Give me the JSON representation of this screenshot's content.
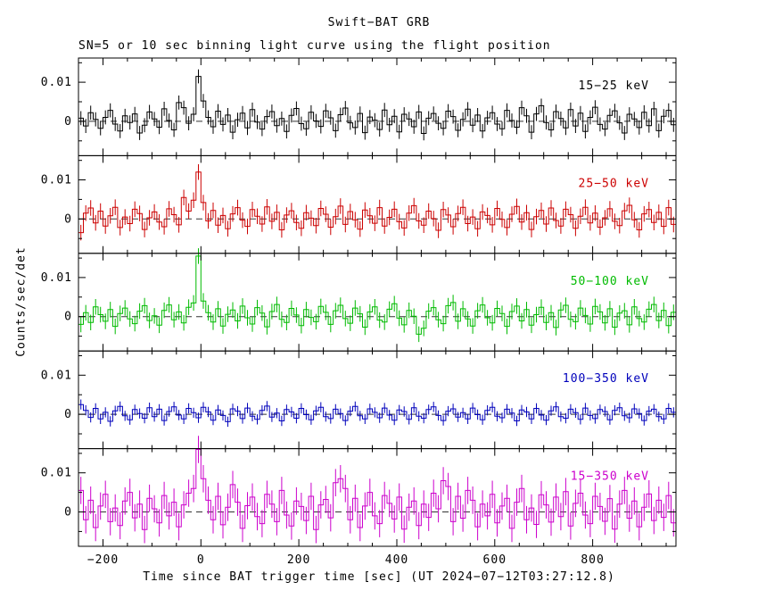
{
  "chart": {
    "title": "Swift−BAT GRB",
    "subtitle": "SN=5 or 10 sec binning light curve using the flight position",
    "ylabel": "Counts/sec/det",
    "xlabel": "Time since BAT trigger time [sec] (UT 2024−07−12T03:27:12.8)"
  },
  "chart_data": {
    "type": "line",
    "subtype": "step-histogram-with-errorbars",
    "title": "Swift−BAT GRB",
    "xlabel": "Time since BAT trigger time [sec] (UT 2024−07−12T03:27:12.8)",
    "ylabel": "Counts/sec/det",
    "xlim": [
      -250,
      970
    ],
    "ylim": [
      -0.0088,
      0.0162
    ],
    "x_ticks": [
      -200,
      0,
      200,
      400,
      600,
      800
    ],
    "x_tick_labels": [
      "−200",
      "0",
      "200",
      "400",
      "600",
      "800"
    ],
    "y_ticks": [
      0,
      0.01
    ],
    "y_tick_labels": [
      "0",
      "0.01"
    ],
    "x_start": -245,
    "x_step": 10,
    "value_unit": 0.0001,
    "grid": false,
    "legend_position": "inside-top-right-per-panel",
    "series": [
      {
        "name": "15−25 keV",
        "color": "#000000",
        "err": 18,
        "values": [
          8,
          -12,
          22,
          5,
          -18,
          10,
          28,
          -7,
          -25,
          14,
          -3,
          19,
          -30,
          -10,
          24,
          6,
          -15,
          32,
          2,
          -22,
          48,
          35,
          -5,
          18,
          115,
          52,
          10,
          -14,
          26,
          -8,
          16,
          -28,
          4,
          21,
          -17,
          30,
          -2,
          -20,
          12,
          25,
          -11,
          7,
          -26,
          15,
          33,
          -6,
          -19,
          23,
          1,
          -13,
          27,
          9,
          -24,
          17,
          34,
          -4,
          -16,
          20,
          -29,
          11,
          3,
          -21,
          29,
          -9,
          13,
          -27,
          18,
          6,
          -14,
          24,
          -31,
          8,
          20,
          -5,
          -18,
          26,
          12,
          -23,
          5,
          31,
          -10,
          16,
          -25,
          9,
          22,
          -7,
          -19,
          28,
          2,
          -15,
          35,
          14,
          -28,
          19,
          40,
          -3,
          -22,
          25,
          7,
          -17,
          30,
          -12,
          21,
          -26,
          10,
          36,
          -8,
          -20,
          15,
          27,
          -4,
          -30,
          18,
          6,
          -16,
          23,
          -11,
          32,
          -24,
          13,
          28,
          -9
        ]
      },
      {
        "name": "25−50 keV",
        "color": "#cc0000",
        "err": 20,
        "values": [
          -35,
          15,
          28,
          -10,
          20,
          -18,
          8,
          30,
          -22,
          5,
          -12,
          25,
          14,
          -27,
          3,
          18,
          -8,
          -20,
          26,
          11,
          -15,
          55,
          20,
          48,
          120,
          42,
          -5,
          22,
          -16,
          9,
          -25,
          13,
          29,
          -3,
          -19,
          24,
          7,
          -13,
          31,
          -6,
          17,
          -28,
          10,
          21,
          -9,
          -24,
          16,
          2,
          -17,
          27,
          12,
          -21,
          6,
          33,
          -14,
          19,
          -2,
          -26,
          23,
          8,
          -11,
          29,
          -18,
          4,
          25,
          -7,
          -23,
          15,
          34,
          -5,
          -16,
          20,
          1,
          -29,
          24,
          10,
          -20,
          14,
          30,
          -12,
          5,
          -25,
          18,
          9,
          -15,
          27,
          -1,
          -22,
          12,
          32,
          -8,
          16,
          -27,
          6,
          22,
          -13,
          28,
          -4,
          -18,
          25,
          11,
          -24,
          7,
          30,
          -10,
          15,
          -21,
          3,
          26,
          -6,
          -17,
          21,
          35,
          -2,
          -28,
          13,
          24,
          -9,
          17,
          -19,
          29,
          -14
        ]
      },
      {
        "name": "50−100 keV",
        "color": "#00bb00",
        "err": 20,
        "values": [
          -20,
          10,
          -15,
          25,
          5,
          -12,
          18,
          -25,
          8,
          22,
          -6,
          -18,
          14,
          28,
          -10,
          2,
          -22,
          16,
          30,
          -8,
          12,
          -16,
          24,
          35,
          155,
          40,
          10,
          -14,
          20,
          -24,
          6,
          17,
          -11,
          27,
          -3,
          -19,
          23,
          9,
          -26,
          13,
          31,
          -7,
          -15,
          21,
          4,
          -23,
          18,
          -2,
          -13,
          26,
          11,
          -20,
          15,
          29,
          -5,
          -17,
          22,
          7,
          -27,
          12,
          25,
          -9,
          -14,
          19,
          33,
          -4,
          -21,
          16,
          1,
          -45,
          -30,
          14,
          23,
          -8,
          -18,
          28,
          36,
          -12,
          20,
          -6,
          -24,
          15,
          30,
          -3,
          -16,
          21,
          8,
          -25,
          13,
          27,
          -11,
          18,
          -22,
          5,
          24,
          -15,
          10,
          -28,
          17,
          29,
          -7,
          -13,
          22,
          3,
          -19,
          26,
          12,
          -16,
          20,
          -27,
          9,
          15,
          -21,
          25,
          -5,
          -14,
          19,
          31,
          -10,
          16,
          -23,
          11
        ]
      },
      {
        "name": "100−350 keV",
        "color": "#0000bb",
        "err": 13,
        "values": [
          25,
          10,
          -8,
          15,
          -12,
          5,
          -18,
          9,
          20,
          -4,
          -14,
          12,
          2,
          -10,
          17,
          -6,
          13,
          -16,
          7,
          19,
          -2,
          -12,
          15,
          4,
          -9,
          18,
          6,
          -15,
          11,
          -3,
          -19,
          14,
          8,
          -11,
          16,
          -5,
          -13,
          10,
          21,
          -7,
          3,
          -17,
          12,
          6,
          -10,
          15,
          -1,
          -14,
          9,
          18,
          -6,
          -11,
          13,
          2,
          -16,
          8,
          20,
          -4,
          -12,
          14,
          5,
          -9,
          16,
          -2,
          -15,
          11,
          7,
          -13,
          17,
          -5,
          -10,
          12,
          19,
          -3,
          -16,
          8,
          14,
          -7,
          4,
          -12,
          16,
          -1,
          -14,
          10,
          18,
          -5,
          -9,
          13,
          3,
          -17,
          11,
          6,
          -12,
          15,
          -2,
          -15,
          9,
          19,
          -6,
          -10,
          13,
          4,
          -13,
          16,
          -3,
          -11,
          12,
          7,
          -14,
          10,
          17,
          -4,
          -9,
          14,
          2,
          -16,
          8,
          13,
          -6,
          -12,
          15,
          5
        ]
      },
      {
        "name": "15−350 keV",
        "color": "#cc00cc",
        "err": 35,
        "values": [
          55,
          -20,
          30,
          -40,
          15,
          45,
          -25,
          10,
          -35,
          28,
          50,
          -15,
          20,
          -45,
          35,
          8,
          -28,
          42,
          -10,
          25,
          -38,
          18,
          48,
          60,
          160,
          85,
          30,
          -20,
          40,
          -33,
          12,
          70,
          25,
          -42,
          16,
          38,
          -12,
          -30,
          45,
          20,
          -25,
          55,
          -8,
          -36,
          28,
          14,
          -22,
          40,
          -45,
          18,
          32,
          -15,
          75,
          85,
          60,
          -20,
          35,
          -40,
          15,
          50,
          -10,
          -30,
          42,
          22,
          -18,
          38,
          -44,
          12,
          28,
          -35,
          20,
          -14,
          48,
          8,
          80,
          65,
          -25,
          40,
          -16,
          55,
          30,
          -38,
          20,
          -10,
          45,
          -28,
          15,
          35,
          -42,
          25,
          60,
          -20,
          10,
          -32,
          44,
          18,
          -26,
          38,
          -12,
          52,
          -36,
          22,
          48,
          -8,
          -30,
          40,
          14,
          -24,
          34,
          -44,
          20,
          55,
          -16,
          28,
          -38,
          12,
          46,
          -22,
          30,
          -14,
          42,
          -28
        ]
      }
    ]
  }
}
